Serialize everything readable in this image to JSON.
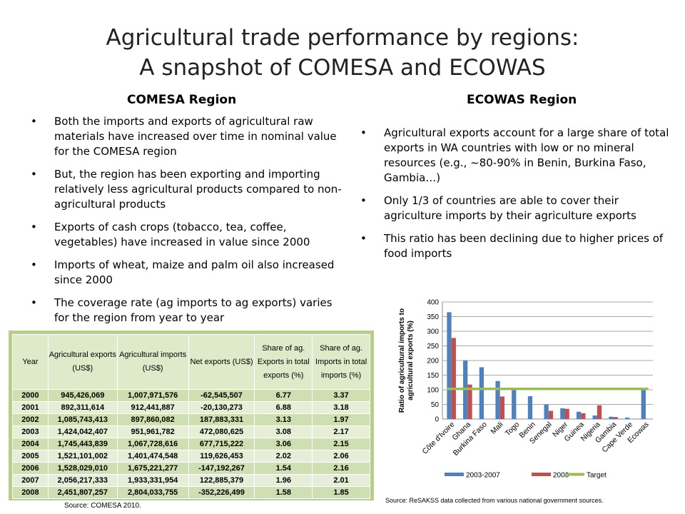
{
  "title_line1": "Agricultural trade performance by regions:",
  "title_line2": "A snapshot of COMESA and ECOWAS",
  "comesa": {
    "heading": "COMESA Region",
    "bullets": [
      "Both the imports and exports of agricultural raw materials have increased over time in nominal value for the COMESA region",
      "But, the region has been exporting and importing relatively less agricultural products compared to non-agricultural products",
      "Exports of cash crops (tobacco, tea, coffee, vegetables) have increased in value since 2000",
      "Imports of wheat, maize and palm oil also increased since 2000",
      "The coverage rate (ag imports to ag exports) varies for the region from year to year"
    ]
  },
  "ecowas": {
    "heading": "ECOWAS Region",
    "bullets": [
      "Agricultural exports account for a large share of total exports in WA countries with low or no mineral resources (e.g., ~80-90% in Benin, Burkina Faso, Gambia…)",
      "Only 1/3 of countries are able to cover their agriculture imports by their agriculture exports",
      "This ratio has been declining due to higher prices of food imports"
    ]
  },
  "table": {
    "headers": [
      "Year",
      "Agricultural exports (US$)",
      "Agricultural imports (US$)",
      "Net exports (US$)",
      "Share of ag. Exports in total exports (%)",
      "Share of ag. Imports in total imports (%)"
    ],
    "rows": [
      [
        "2000",
        "945,426,069",
        "1,007,971,576",
        "-62,545,507",
        "6.77",
        "3.37"
      ],
      [
        "2001",
        "892,311,614",
        "912,441,887",
        "-20,130,273",
        "6.88",
        "3.18"
      ],
      [
        "2002",
        "1,085,743,413",
        "897,860,082",
        "187,883,331",
        "3.13",
        "1.97"
      ],
      [
        "2003",
        "1,424,042,407",
        "951,961,782",
        "472,080,625",
        "3.08",
        "2.17"
      ],
      [
        "2004",
        "1,745,443,839",
        "1,067,728,616",
        "677,715,222",
        "3.06",
        "2.15"
      ],
      [
        "2005",
        "1,521,101,002",
        "1,401,474,548",
        "119,626,453",
        "2.02",
        "2.06"
      ],
      [
        "2006",
        "1,528,029,010",
        "1,675,221,277",
        "-147,192,267",
        "1.54",
        "2.16"
      ],
      [
        "2007",
        "2,056,217,333",
        "1,933,331,954",
        "122,885,379",
        "1.96",
        "2.01"
      ],
      [
        "2008",
        "2,451,807,257",
        "2,804,033,755",
        "-352,226,499",
        "1.58",
        "1.85"
      ]
    ],
    "source": "Source: COMESA 2010."
  },
  "chart_source": "Source: ReSAKSS data collected from various national government sources.",
  "chart_data": {
    "type": "bar",
    "ylabel": "Ratio of agricultural imports to agricultural exports (%)",
    "ylim": [
      0,
      400
    ],
    "yticks": [
      "0",
      "50",
      "100",
      "150",
      "200",
      "250",
      "300",
      "350",
      "400"
    ],
    "categories": [
      "Côte d'Ivoire",
      "Ghana",
      "Burkina Faso",
      "Mali",
      "Togo",
      "Benin",
      "Senegal",
      "Niger",
      "Guinea",
      "Nigeria",
      "Gambia",
      "Cape Verde",
      "Ecowas"
    ],
    "series": [
      {
        "name": "2003-2007",
        "color": "#4f81bd",
        "values": [
          365,
          200,
          177,
          130,
          100,
          78,
          50,
          37,
          25,
          12,
          8,
          5,
          100
        ]
      },
      {
        "name": "2008",
        "color": "#c0504d",
        "values": [
          277,
          118,
          null,
          77,
          null,
          null,
          28,
          35,
          20,
          47,
          7,
          null,
          null
        ]
      }
    ],
    "target": {
      "name": "Target",
      "color": "#9bbb59",
      "value": 103
    },
    "legend_position": "bottom",
    "grid": true
  }
}
